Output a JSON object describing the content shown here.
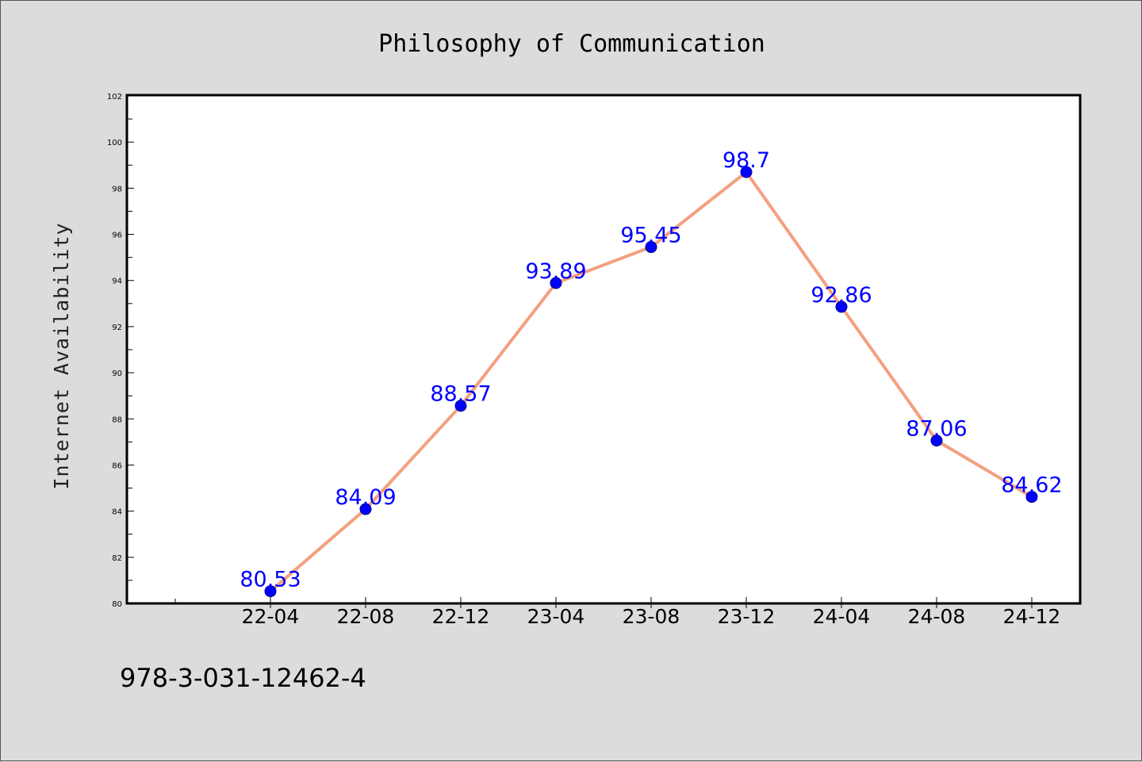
{
  "colors": {
    "background": "#dcdcdc",
    "plot_background": "#ffffff",
    "line": "#f4a07f",
    "marker": "#0000ff",
    "marker_edge": "#00008b",
    "data_label": "#0000ff"
  },
  "footer": {
    "isbn": "978-3-031-12462-4"
  },
  "chart_data": {
    "type": "line",
    "title": "Philosophy of Communication",
    "xlabel": "",
    "ylabel": "Internet Availability",
    "categories": [
      "22-04",
      "22-08",
      "22-12",
      "23-04",
      "23-08",
      "23-12",
      "24-04",
      "24-08",
      "24-12"
    ],
    "series": [
      {
        "values": [
          80.53,
          84.09,
          88.57,
          93.89,
          95.45,
          98.7,
          92.86,
          87.06,
          84.62
        ]
      }
    ],
    "data_labels": [
      "80.53",
      "84.09",
      "88.57",
      "93.89",
      "95.45",
      "98.7",
      "92.86",
      "87.06",
      "84.62"
    ],
    "ylim": [
      80,
      102
    ],
    "yticks": [
      80,
      82,
      84,
      86,
      88,
      90,
      92,
      94,
      96,
      98,
      100,
      102
    ],
    "grid": false,
    "legend": "none"
  }
}
